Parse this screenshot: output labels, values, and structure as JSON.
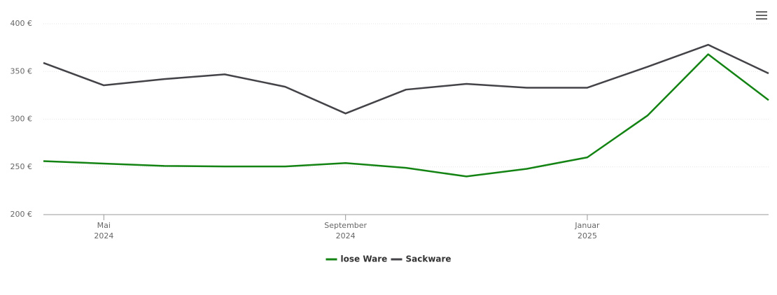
{
  "chart_data": {
    "type": "line",
    "x": [
      "2024-04",
      "2024-05",
      "2024-06",
      "2024-07",
      "2024-08",
      "2024-09",
      "2024-10",
      "2024-11",
      "2024-12",
      "2025-01",
      "2025-02",
      "2025-03",
      "2025-04"
    ],
    "series": [
      {
        "name": "lose Ware",
        "color": "#138313",
        "values": [
          256,
          253.5,
          251,
          250.5,
          250.5,
          254,
          249,
          240,
          248,
          260,
          304,
          368,
          320
        ]
      },
      {
        "name": "Sackware",
        "color": "#434348",
        "values": [
          359,
          335.5,
          342,
          347,
          334,
          306,
          331,
          337,
          333,
          333,
          355,
          378,
          348
        ]
      }
    ],
    "xlim": [
      "2024-04",
      "2025-04"
    ],
    "xticks": [
      {
        "value": "2024-05",
        "label": [
          "Mai",
          "2024"
        ]
      },
      {
        "value": "2024-09",
        "label": [
          "September",
          "2024"
        ]
      },
      {
        "value": "2025-01",
        "label": [
          "Januar",
          "2025"
        ]
      }
    ],
    "ylim": [
      200,
      400
    ],
    "yticks": [
      {
        "value": 200,
        "label": "200 €"
      },
      {
        "value": 250,
        "label": "250 €"
      },
      {
        "value": 300,
        "label": "300 €"
      },
      {
        "value": 350,
        "label": "350 €"
      },
      {
        "value": 400,
        "label": "400 €"
      }
    ],
    "grid": true,
    "legend": "bottom"
  }
}
